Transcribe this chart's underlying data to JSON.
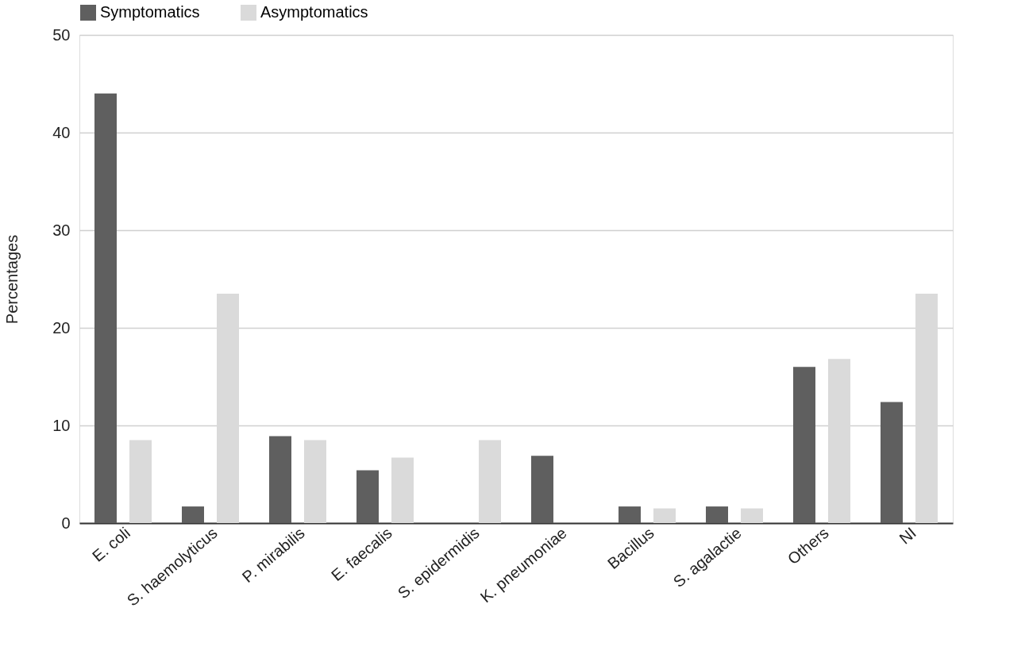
{
  "chart_data": {
    "type": "bar",
    "ylabel": "Percentages",
    "categories": [
      "E. coli",
      "S. haemolyticus",
      "P. mirabilis",
      "E. faecalis",
      "S. epidermidis",
      "K. pneumoniae",
      "Bacillus",
      "S. agalactie",
      "Others",
      "NI"
    ],
    "series": [
      {
        "name": "Symptomatics",
        "color": "#5f5f5f",
        "values": [
          44,
          1.7,
          8.9,
          5.4,
          0,
          6.9,
          1.7,
          1.7,
          16,
          12.4
        ]
      },
      {
        "name": "Asymptomatics",
        "color": "#dadada",
        "values": [
          8.5,
          23.5,
          8.5,
          6.7,
          8.5,
          0,
          1.5,
          1.5,
          16.8,
          23.5
        ]
      }
    ],
    "ylim": [
      0,
      50
    ],
    "yticks": [
      0,
      10,
      20,
      30,
      40,
      50
    ],
    "grid": "y",
    "legend": "top"
  }
}
